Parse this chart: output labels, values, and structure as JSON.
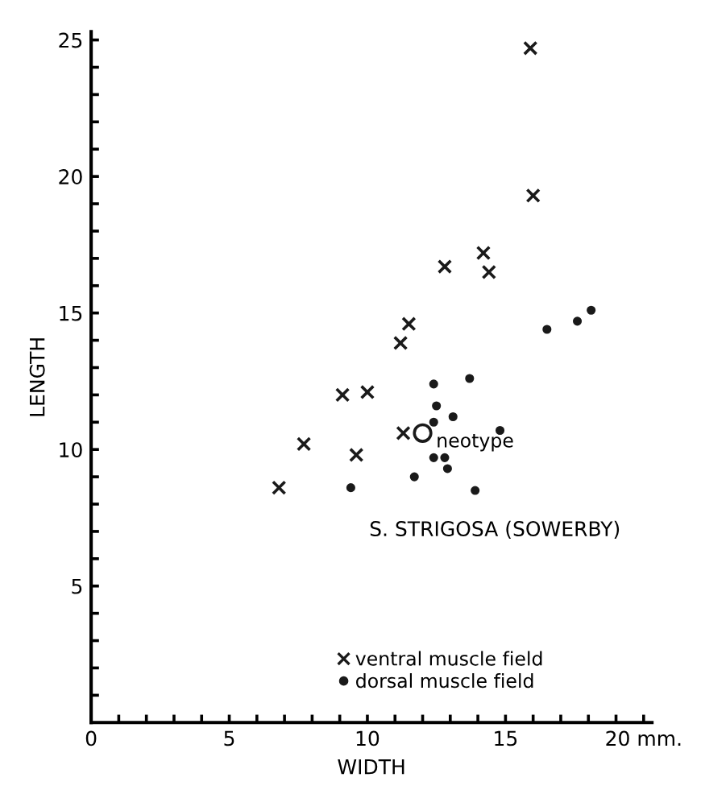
{
  "chart_data": {
    "type": "scatter",
    "xlabel": "WIDTH",
    "ylabel": "LENGTH",
    "series": [
      {
        "name": "ventral muscle field",
        "color": "#1a1a1a",
        "marker": "cross",
        "x": [
          15.9,
          16.0,
          12.8,
          14.2,
          14.4,
          11.5,
          11.2,
          9.1,
          10.0,
          7.7,
          9.6,
          6.8,
          11.3
        ],
        "values": [
          24.7,
          19.3,
          16.7,
          17.2,
          16.5,
          14.6,
          13.9,
          12.0,
          12.1,
          10.2,
          9.8,
          8.6,
          10.6
        ]
      },
      {
        "name": "dorsal muscle field",
        "color": "#1a1a1a",
        "marker": "circle",
        "x": [
          16.5,
          17.6,
          18.1,
          12.4,
          13.7,
          12.5,
          13.1,
          12.4,
          14.8,
          12.4,
          12.8,
          12.9,
          11.7,
          13.9,
          9.4
        ],
        "values": [
          14.4,
          14.7,
          15.1,
          12.4,
          12.6,
          11.6,
          11.2,
          11.0,
          10.7,
          9.7,
          9.7,
          9.3,
          9.0,
          8.5,
          8.6
        ]
      },
      {
        "color": "#1a1a1a",
        "marker": "circle",
        "x": [
          12.0
        ],
        "values": [
          10.6
        ]
      }
    ],
    "annotations": [
      {
        "text": "neotype",
        "x": 12.0,
        "y": 10.6
      },
      "S. STRIGOSA (SOWERBY)"
    ],
    "legend": "bottom",
    "xlim": [
      0,
      20.3
    ],
    "ylim": [
      0,
      25.3
    ],
    "xticks": [
      0,
      {
        "value": 1,
        "label": null
      },
      {
        "value": 2,
        "label": null
      },
      {
        "value": 3,
        "label": null
      },
      {
        "value": 4,
        "label": null
      },
      5,
      {
        "value": 6,
        "label": null
      },
      {
        "value": 7,
        "label": null
      },
      {
        "value": 8,
        "label": null
      },
      {
        "value": 9,
        "label": null
      },
      10,
      {
        "value": 11,
        "label": null
      },
      {
        "value": 12,
        "label": null
      },
      {
        "value": 13,
        "label": null
      },
      {
        "value": 14,
        "label": null
      },
      15,
      {
        "value": 16,
        "label": null
      },
      {
        "value": 17,
        "label": null
      },
      {
        "value": 18,
        "label": null
      },
      {
        "value": 19,
        "label": null
      },
      {
        "value": 20,
        "label": "20 mm."
      }
    ],
    "yticks": [
      {
        "value": 1,
        "label": null
      },
      {
        "value": 2,
        "label": null
      },
      {
        "value": 3,
        "label": null
      },
      {
        "value": 4,
        "label": null
      },
      5,
      {
        "value": 6,
        "label": null
      },
      {
        "value": 7,
        "label": null
      },
      {
        "value": 8,
        "label": null
      },
      {
        "value": 9,
        "label": null
      },
      10,
      {
        "value": 11,
        "label": null
      },
      {
        "value": 12,
        "label": null
      },
      {
        "value": 13,
        "label": null
      },
      {
        "value": 14,
        "label": null
      },
      15,
      {
        "value": 16,
        "label": null
      },
      {
        "value": 17,
        "label": null
      },
      {
        "value": 18,
        "label": null
      },
      {
        "value": 19,
        "label": null
      },
      20,
      {
        "value": 21,
        "label": null
      },
      {
        "value": 22,
        "label": null
      },
      {
        "value": 23,
        "label": null
      },
      {
        "value": 24,
        "label": null
      },
      25
    ],
    "grid": false
  }
}
